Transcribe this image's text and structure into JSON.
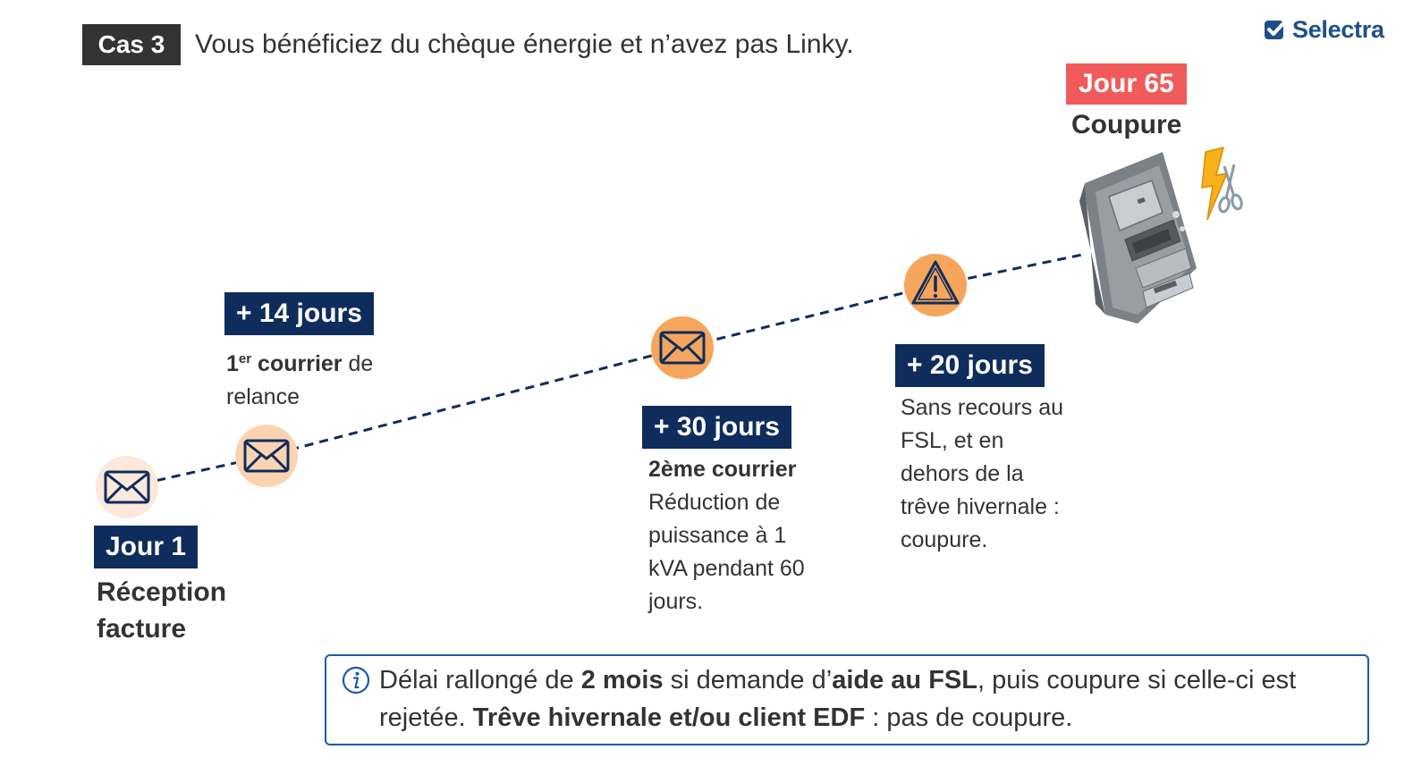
{
  "header": {
    "case_label": "Cas 3",
    "title": "Vous bénéficiez du chèque énergie et n’avez pas Linky.",
    "brand_name": "Selectra"
  },
  "steps": [
    {
      "label": "Jour 1",
      "title_line1": "Réception",
      "title_line2": "facture",
      "icon": "envelope-icon"
    },
    {
      "label": "+ 14 jours",
      "ordinal": "1",
      "ordinal_suffix": "er",
      "bold_text": " courrier",
      "text_rest": " de",
      "text_line2": "relance",
      "icon": "envelope-icon"
    },
    {
      "label": "+ 30 jours",
      "bold_title": "2ème courrier",
      "lines": [
        "Réduction de",
        "puissance à 1",
        "kVA pendant 60",
        "jours."
      ],
      "icon": "envelope-icon"
    },
    {
      "label": "+ 20 jours",
      "lines": [
        "Sans recours au",
        "FSL, et en",
        "dehors de la",
        "trêve hivernale :",
        "coupure."
      ],
      "icon": "warning-icon"
    },
    {
      "label": "Jour 65",
      "title": "Coupure",
      "icon": "electric-meter-icon"
    }
  ],
  "info": {
    "part1": "Délai rallongé de ",
    "bold1": "2 mois",
    "part2": " si demande d’",
    "bold2": "aide au FSL",
    "part3": ", puis coupure si celle-ci est rejetée. ",
    "bold3": "Trêve hivernale et/ou client EDF",
    "part4": " : pas de coupure."
  },
  "colors": {
    "navy": "#0f2d5c",
    "red": "#f15a5a",
    "orange": "#f6a55c",
    "light_orange": "#fbd3b2",
    "pale_orange": "#fde8db",
    "info_border": "#1e5aa8",
    "brand_blue": "#1e4f8a"
  }
}
